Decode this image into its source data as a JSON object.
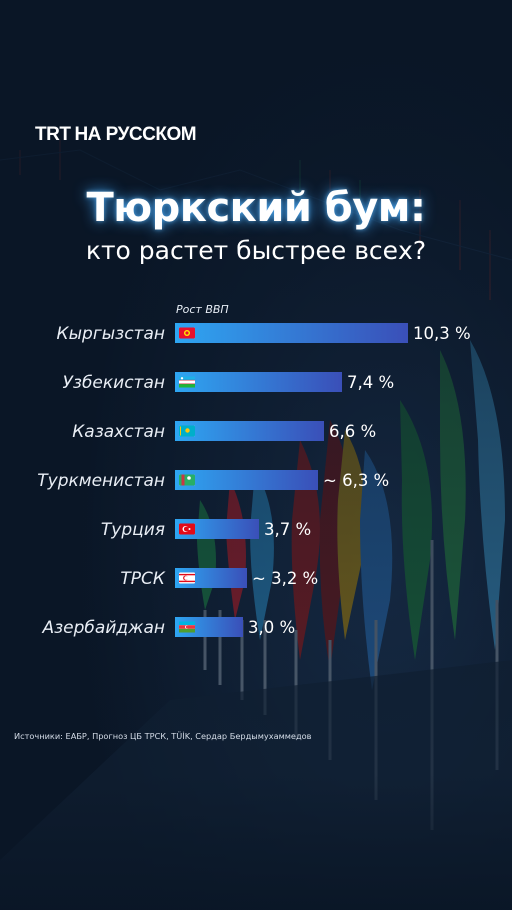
{
  "brand": {
    "trt": "TRT",
    "sub": "НА РУССКОМ"
  },
  "title": "Тюркский бум:",
  "subtitle": "кто растет быстрее всех?",
  "sources": "Источники: ЕАБР, Прогноз ЦБ ТРСК, TÜİK, Сердар Бердымухаммедов",
  "colors": {
    "bar_start": "#2ea6f2",
    "bar_end": "#3a4fb8",
    "background": "#0a1626"
  },
  "chart_data": {
    "type": "bar",
    "orientation": "horizontal",
    "ylabel": "Рост ВВП",
    "categories": [
      "Кыргызстан",
      "Узбекистан",
      "Казахстан",
      "Туркменистан",
      "Турция",
      "ТРСК",
      "Азербайджан"
    ],
    "values": [
      10.3,
      7.4,
      6.6,
      6.3,
      3.7,
      3.2,
      3.0
    ],
    "value_labels": [
      "10,3 %",
      "7,4 %",
      "6,6 %",
      "~ 6,3 %",
      "3,7 %",
      "~ 3,2 %",
      "3,0 %"
    ],
    "flags": [
      "kyrgyzstan-flag-icon",
      "uzbekistan-flag-icon",
      "kazakhstan-flag-icon",
      "turkmenistan-flag-icon",
      "turkey-flag-icon",
      "northern-cyprus-flag-icon",
      "azerbaijan-flag-icon"
    ],
    "grid": false,
    "legend": "none"
  }
}
